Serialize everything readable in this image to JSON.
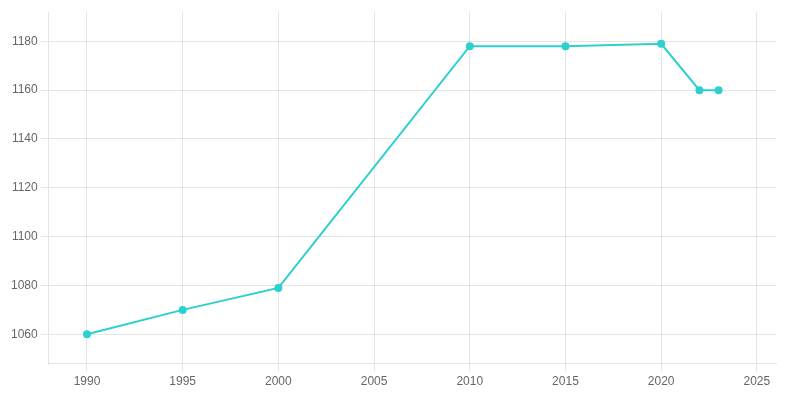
{
  "chart_data": {
    "type": "line",
    "x": [
      1990,
      1995,
      2000,
      2010,
      2015,
      2020,
      2022,
      2023
    ],
    "values": [
      1060,
      1070,
      1079,
      1178,
      1178,
      1179,
      1160,
      1160
    ],
    "color": "#2ecfcf",
    "marker": "circle",
    "line_style": "solid",
    "xlim": [
      1988,
      2026
    ],
    "ylim": [
      1048,
      1192
    ],
    "xticks": [
      1990,
      1995,
      2000,
      2005,
      2010,
      2015,
      2020,
      2025
    ],
    "yticks": [
      1060,
      1080,
      1100,
      1120,
      1140,
      1160,
      1180
    ],
    "grid": true
  }
}
